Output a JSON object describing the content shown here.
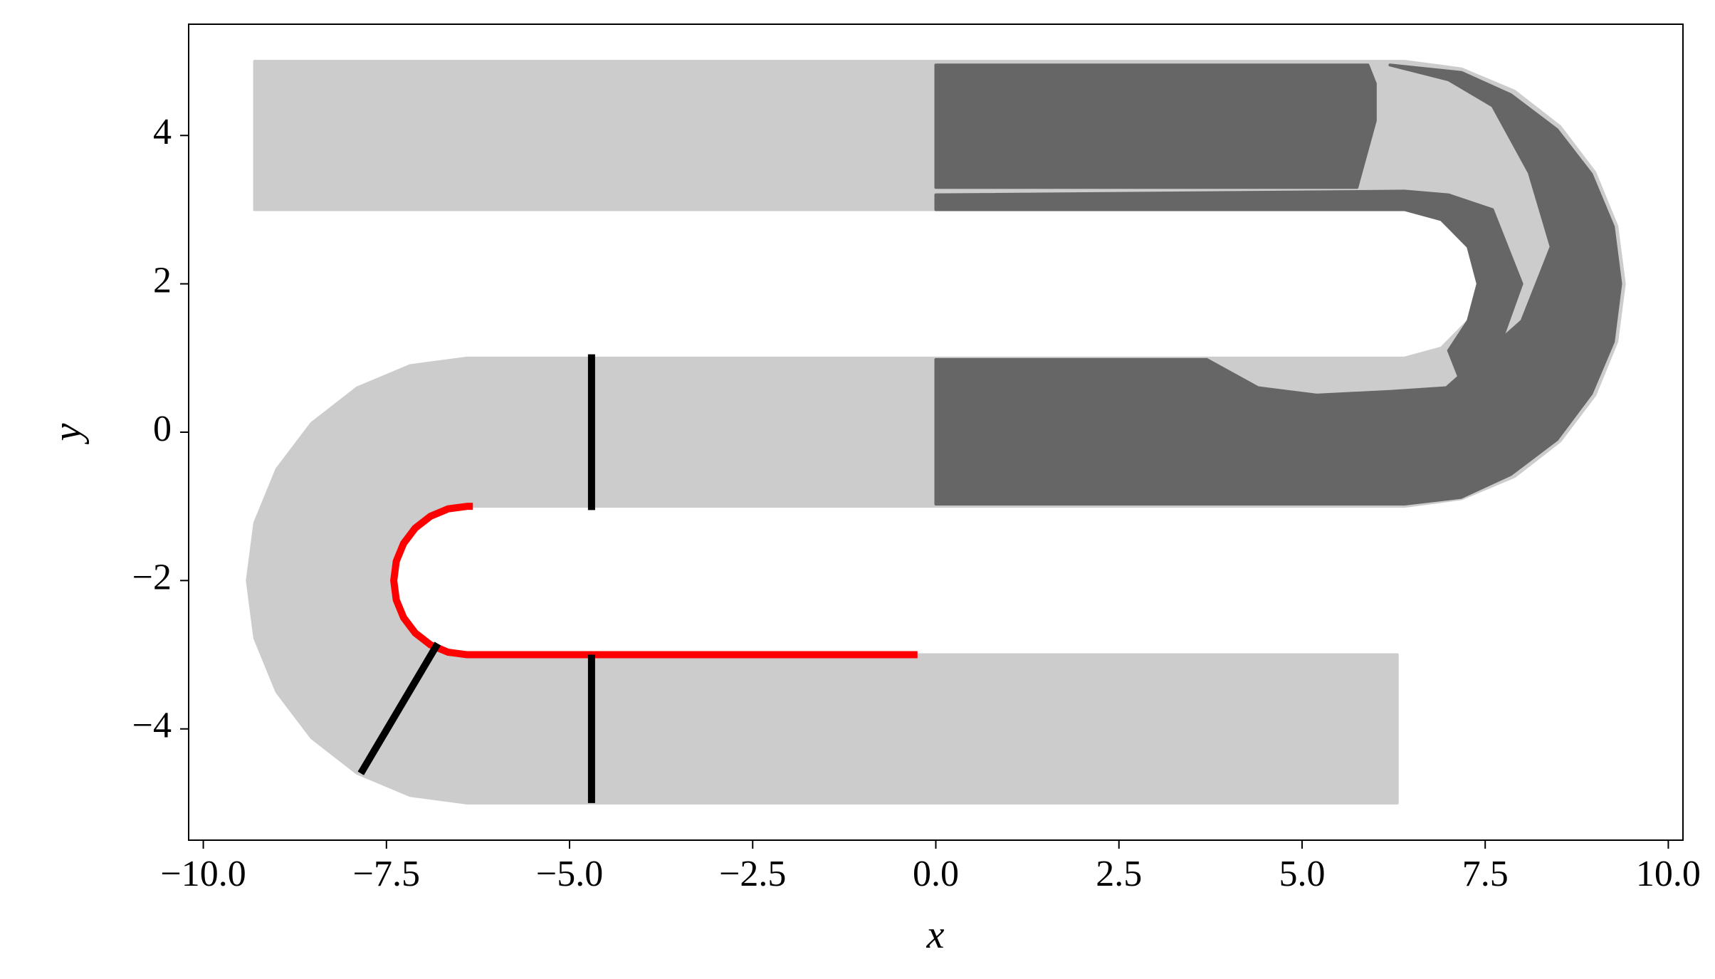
{
  "chart_data": {
    "type": "region",
    "x_label": "x",
    "y_label": "y",
    "xlim": [
      -10.2,
      10.2
    ],
    "ylim": [
      -5.5,
      5.5
    ],
    "xticks": [
      {
        "value": -10,
        "label": "−10.0"
      },
      {
        "value": -7.5,
        "label": "−7.5"
      },
      {
        "value": -5,
        "label": "−5.0"
      },
      {
        "value": -2.5,
        "label": "−2.5"
      },
      {
        "value": 0,
        "label": "0.0"
      },
      {
        "value": 2.5,
        "label": "2.5"
      },
      {
        "value": 5,
        "label": "5.0"
      },
      {
        "value": 7.5,
        "label": "7.5"
      },
      {
        "value": 10,
        "label": "10.0"
      }
    ],
    "yticks": [
      {
        "value": -4,
        "label": "−4"
      },
      {
        "value": -2,
        "label": "−2"
      },
      0,
      2,
      4
    ],
    "series": [
      {
        "type": "area",
        "color": "#cccccc",
        "x": [
          -9.3,
          6.4,
          7.176,
          7.9,
          8.521,
          8.998,
          9.298,
          9.4,
          9.298,
          8.998,
          8.521,
          7.9,
          7.176,
          6.4,
          -6.4,
          -6.659,
          -6.9,
          -7.107,
          -7.266,
          -7.366,
          -7.4,
          -7.366,
          -7.266,
          -7.107,
          -6.9,
          -6.659,
          -6.4,
          6.3,
          6.3,
          -6.4,
          -7.176,
          -7.9,
          -8.521,
          -8.998,
          -9.298,
          -9.4,
          -9.298,
          -8.998,
          -8.521,
          -7.9,
          -7.176,
          -6.4,
          6.4,
          6.9,
          7.266,
          7.4,
          7.266,
          6.9,
          6.4,
          -9.3
        ],
        "y": [
          5,
          5,
          4.898,
          4.598,
          4.121,
          3.5,
          2.776,
          2,
          1.224,
          0.5,
          -0.121,
          -0.598,
          -0.898,
          -1,
          -1,
          -1.034,
          -1.134,
          -1.293,
          -1.5,
          -1.741,
          -2,
          -2.259,
          -2.5,
          -2.707,
          -2.866,
          -2.966,
          -3,
          -3,
          -5,
          -5,
          -4.898,
          -4.598,
          -4.121,
          -3.5,
          -2.776,
          -2,
          -1.224,
          -0.5,
          0.121,
          0.598,
          0.898,
          1,
          1,
          1.134,
          1.5,
          2,
          2.5,
          2.866,
          3,
          3
        ]
      },
      {
        "type": "area",
        "color": "#666666",
        "x": [
          0,
          5.9,
          6.0,
          6.0,
          5.75,
          0
        ],
        "y": [
          4.95,
          4.95,
          4.7,
          4.2,
          3.3,
          3.3
        ]
      },
      {
        "type": "area",
        "color": "#666666",
        "x": [
          0,
          6.4,
          6.9,
          7.266,
          7.4,
          7.266,
          7.0,
          7.2,
          7.6,
          8.0,
          7.6,
          7.0,
          6.4,
          0
        ],
        "y": [
          3.0,
          3.0,
          2.866,
          2.5,
          2,
          1.5,
          1.1,
          0.6,
          0.9,
          2,
          3.0,
          3.2,
          3.25,
          3.2
        ]
      },
      {
        "type": "area",
        "color": "#666666",
        "x": [
          6.2,
          7.176,
          7.85,
          8.48,
          8.95,
          9.25,
          9.35,
          9.25,
          8.95,
          8.48,
          7.85,
          7.17,
          6.4,
          0,
          0,
          3.7,
          4.4,
          5.2,
          6.2,
          6.97,
          8.0,
          8.4,
          8.1,
          7.6,
          7.0
        ],
        "y": [
          4.95,
          4.85,
          4.55,
          4.08,
          3.48,
          2.77,
          2,
          1.22,
          0.52,
          -0.1,
          -0.57,
          -0.88,
          -0.97,
          -0.97,
          0.98,
          0.98,
          0.6,
          0.5,
          0.55,
          0.6,
          1.5,
          2.5,
          3.5,
          4.4,
          4.75
        ]
      },
      {
        "type": "line",
        "color": "#ff0000",
        "x": [
          -6.32,
          -6.4,
          -6.659,
          -6.9,
          -7.107,
          -7.266,
          -7.366,
          -7.4,
          -7.366,
          -7.266,
          -7.107,
          -6.9,
          -6.659,
          -6.4,
          -0.25
        ],
        "y": [
          -1,
          -1,
          -1.034,
          -1.134,
          -1.293,
          -1.5,
          -1.741,
          -2,
          -2.259,
          -2.5,
          -2.707,
          -2.866,
          -2.966,
          -3,
          -3
        ]
      },
      {
        "type": "line",
        "color": "#000000",
        "x": [
          -4.7,
          -4.7
        ],
        "y": [
          1.05,
          -1.05
        ]
      },
      {
        "type": "line",
        "color": "#000000",
        "x": [
          -4.7,
          -4.7
        ],
        "y": [
          -3,
          -5
        ]
      },
      {
        "type": "line",
        "color": "#000000",
        "x": [
          -6.8,
          -7.85
        ],
        "y": [
          -2.85,
          -4.6
        ]
      }
    ]
  }
}
